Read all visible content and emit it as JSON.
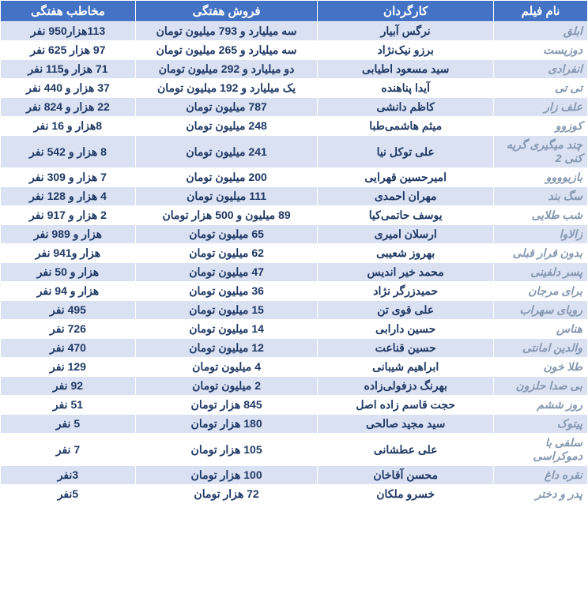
{
  "table": {
    "columns": [
      {
        "key": "name",
        "label": "نام فیلم"
      },
      {
        "key": "director",
        "label": "کارگردان"
      },
      {
        "key": "sales",
        "label": "فروش هفتگی"
      },
      {
        "key": "audience",
        "label": "مخاطب هفتگی"
      }
    ],
    "rows": [
      {
        "name": "ابلق",
        "director": "نرگس آبیار",
        "sales": "سه میلیارد و 793 میلیون تومان",
        "audience": "113هزار950 نفر"
      },
      {
        "name": "دوزیست",
        "director": "برزو نیک‌نژاد",
        "sales": "سه میلیارد و 265 میلیون تومان",
        "audience": "97 هزار 625 نفر"
      },
      {
        "name": "انفرادی",
        "director": "سید مسعود اطیابی",
        "sales": "دو میلیارد و 292 میلیون تومان",
        "audience": "71 هزار و115  نفر"
      },
      {
        "name": "تی تی",
        "director": "آیدا پناهنده",
        "sales": "یک میلیارد و 192 میلیون تومان",
        "audience": "37 هزار و 440 نفر"
      },
      {
        "name": "علف زار",
        "director": "کاظم دانشی",
        "sales": "787 میلیون تومان",
        "audience": "22 هزار و 824 نفر"
      },
      {
        "name": "کوزوو",
        "director": "میثم هاشمی‌طبا",
        "sales": "248 میلیون تومان",
        "audience": "8هزار و 16 نفر"
      },
      {
        "name": "چند میگیری گریه کنی 2",
        "director": "علی توکل نیا",
        "sales": "241 میلیون تومان",
        "audience": "8 هزار و 542 نفر"
      },
      {
        "name": "بازیوووو",
        "director": "امیرحسین قهرایی",
        "sales": "200 میلیون تومان",
        "audience": "7 هزار و 309 نفر"
      },
      {
        "name": "سگ بند",
        "director": "مهران احمدی",
        "sales": "111 میلیون تومان",
        "audience": "4 هزار و 128 نفر"
      },
      {
        "name": "شب طلایی",
        "director": "یوسف حاتمی‌کیا",
        "sales": "89 میلیون و 500 هزار تومان",
        "audience": "2 هزار و 917 نفر"
      },
      {
        "name": "زالاوا",
        "director": "ارسلان امیری",
        "sales": "65 میلیون تومان",
        "audience": "هزار و 989 نفر"
      },
      {
        "name": "بدون قرار قبلی",
        "director": "بهروز شعیبی",
        "sales": "62 میلیون تومان",
        "audience": "هزار و941  نفر"
      },
      {
        "name": "پسر دلفینی",
        "director": "محمد خیر اندیس",
        "sales": "47 میلیون تومان",
        "audience": "هزار و 50 نفر"
      },
      {
        "name": "برای مرجان",
        "director": "حمیدزرگر نژاد",
        "sales": "36 میلیون تومان",
        "audience": "هزار و 94 نفر"
      },
      {
        "name": "رویای سهراب",
        "director": "علی قوی تن",
        "sales": "15 میلیون تومان",
        "audience": "495 نفر"
      },
      {
        "name": "هناس",
        "director": "حسین دارابی",
        "sales": "14 میلیون تومان",
        "audience": "726 نفر"
      },
      {
        "name": "والدین امانتی",
        "director": "حسین قناعت",
        "sales": "12 میلیون تومان",
        "audience": "470 نفر"
      },
      {
        "name": "طلا خون",
        "director": "ابراهیم شیبانی",
        "sales": "4 میلیون تومان",
        "audience": "129 نفر"
      },
      {
        "name": "بی صدا حلزون",
        "director": "بهرنگ دزفولی‌زاده",
        "sales": "2  میلیون تومان",
        "audience": "92 نفر"
      },
      {
        "name": "روز ششم",
        "director": "حجت قاسم زاده اصل",
        "sales": "845 هزار تومان",
        "audience": "51 نفر"
      },
      {
        "name": "پیتوک",
        "director": "سید مجید صالحی",
        "sales": "180 هزار تومان",
        "audience": "5 نفر"
      },
      {
        "name": "سلفی با دموکراسی",
        "director": "علی عطشانی",
        "sales": "105 هزار تومان",
        "audience": "7 نفر"
      },
      {
        "name": "نقره داغ",
        "director": "محسن آقاخان",
        "sales": "100 هزار تومان",
        "audience": "3نفر"
      },
      {
        "name": "پدر و دختر",
        "director": "خسرو ملکان",
        "sales": "72 هزار تومان",
        "audience": "5نفر"
      }
    ],
    "header_bg": "#4472c4",
    "header_fg": "#ffffff",
    "row_odd_bg": "#d9e1f2",
    "row_even_bg": "#ffffff",
    "movie_name_color": "#8497b0",
    "cell_text_color": "#1f3864"
  }
}
